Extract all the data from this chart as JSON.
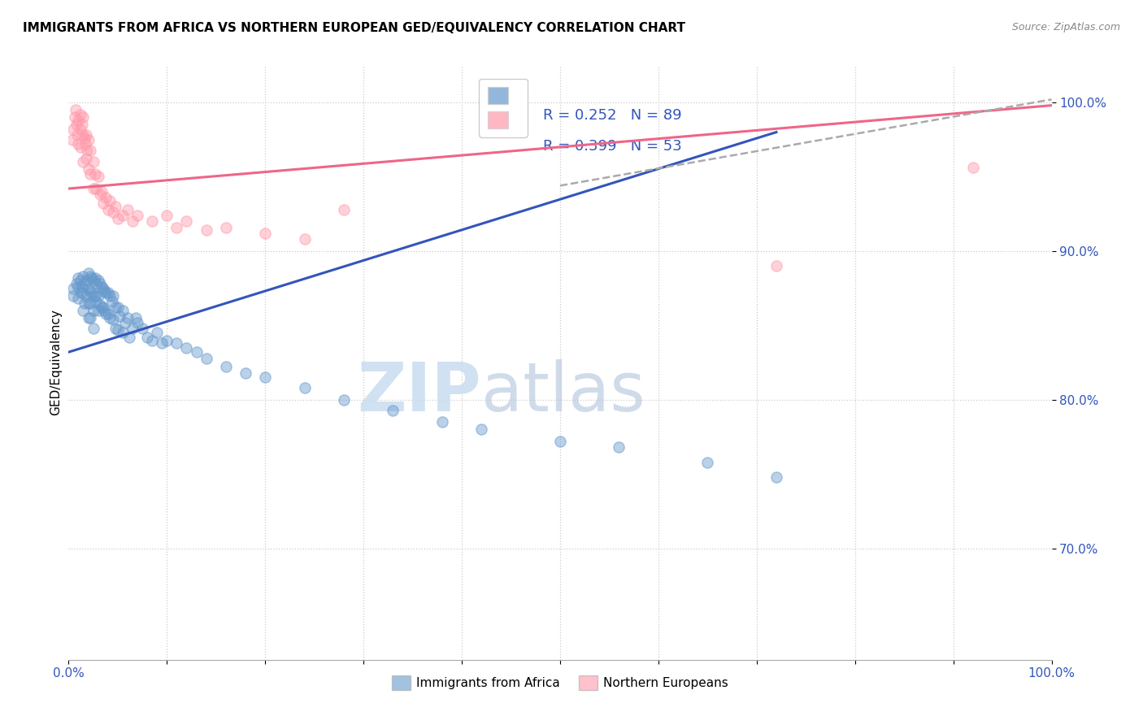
{
  "title": "IMMIGRANTS FROM AFRICA VS NORTHERN EUROPEAN GED/EQUIVALENCY CORRELATION CHART",
  "source": "Source: ZipAtlas.com",
  "ylabel": "GED/Equivalency",
  "ytick_labels": [
    "70.0%",
    "80.0%",
    "90.0%",
    "100.0%"
  ],
  "ytick_values": [
    0.7,
    0.8,
    0.9,
    1.0
  ],
  "xlim": [
    0.0,
    1.0
  ],
  "ylim": [
    0.625,
    1.025
  ],
  "blue_color": "#6699CC",
  "pink_color": "#FF99AA",
  "title_fontsize": 11,
  "watermark_zip": "ZIP",
  "watermark_atlas": "atlas",
  "blue_scatter_x": [
    0.005,
    0.005,
    0.008,
    0.01,
    0.01,
    0.01,
    0.012,
    0.012,
    0.014,
    0.015,
    0.015,
    0.015,
    0.016,
    0.016,
    0.018,
    0.018,
    0.02,
    0.02,
    0.02,
    0.02,
    0.022,
    0.022,
    0.022,
    0.022,
    0.024,
    0.024,
    0.025,
    0.025,
    0.025,
    0.025,
    0.027,
    0.027,
    0.028,
    0.028,
    0.03,
    0.03,
    0.03,
    0.032,
    0.032,
    0.034,
    0.034,
    0.035,
    0.035,
    0.036,
    0.036,
    0.038,
    0.038,
    0.04,
    0.04,
    0.042,
    0.042,
    0.044,
    0.045,
    0.045,
    0.048,
    0.048,
    0.05,
    0.05,
    0.052,
    0.055,
    0.055,
    0.058,
    0.06,
    0.062,
    0.065,
    0.068,
    0.07,
    0.075,
    0.08,
    0.085,
    0.09,
    0.095,
    0.1,
    0.11,
    0.12,
    0.13,
    0.14,
    0.16,
    0.18,
    0.2,
    0.24,
    0.28,
    0.33,
    0.38,
    0.42,
    0.5,
    0.56,
    0.65,
    0.72
  ],
  "blue_scatter_y": [
    0.875,
    0.87,
    0.878,
    0.882,
    0.876,
    0.868,
    0.88,
    0.872,
    0.876,
    0.883,
    0.872,
    0.86,
    0.878,
    0.865,
    0.88,
    0.87,
    0.885,
    0.875,
    0.865,
    0.855,
    0.883,
    0.873,
    0.865,
    0.855,
    0.882,
    0.872,
    0.88,
    0.87,
    0.86,
    0.848,
    0.882,
    0.87,
    0.878,
    0.866,
    0.88,
    0.87,
    0.86,
    0.878,
    0.864,
    0.876,
    0.862,
    0.875,
    0.862,
    0.873,
    0.86,
    0.872,
    0.858,
    0.872,
    0.858,
    0.87,
    0.855,
    0.866,
    0.87,
    0.854,
    0.862,
    0.848,
    0.862,
    0.847,
    0.856,
    0.86,
    0.845,
    0.852,
    0.855,
    0.842,
    0.848,
    0.855,
    0.852,
    0.848,
    0.842,
    0.84,
    0.845,
    0.838,
    0.84,
    0.838,
    0.835,
    0.832,
    0.828,
    0.822,
    0.818,
    0.815,
    0.808,
    0.8,
    0.793,
    0.785,
    0.78,
    0.772,
    0.768,
    0.758,
    0.748
  ],
  "pink_scatter_x": [
    0.004,
    0.005,
    0.006,
    0.007,
    0.008,
    0.009,
    0.01,
    0.01,
    0.012,
    0.012,
    0.012,
    0.014,
    0.015,
    0.015,
    0.015,
    0.016,
    0.017,
    0.018,
    0.018,
    0.019,
    0.02,
    0.02,
    0.022,
    0.022,
    0.025,
    0.025,
    0.027,
    0.028,
    0.03,
    0.032,
    0.034,
    0.035,
    0.038,
    0.04,
    0.042,
    0.045,
    0.048,
    0.05,
    0.055,
    0.06,
    0.065,
    0.07,
    0.085,
    0.1,
    0.11,
    0.12,
    0.14,
    0.16,
    0.2,
    0.24,
    0.28,
    0.72,
    0.92
  ],
  "pink_scatter_y": [
    0.975,
    0.982,
    0.99,
    0.995,
    0.985,
    0.978,
    0.988,
    0.972,
    0.992,
    0.982,
    0.97,
    0.985,
    0.99,
    0.978,
    0.96,
    0.976,
    0.972,
    0.978,
    0.962,
    0.968,
    0.975,
    0.955,
    0.968,
    0.952,
    0.96,
    0.942,
    0.952,
    0.942,
    0.95,
    0.938,
    0.94,
    0.932,
    0.936,
    0.928,
    0.934,
    0.926,
    0.93,
    0.922,
    0.924,
    0.928,
    0.92,
    0.924,
    0.92,
    0.924,
    0.916,
    0.92,
    0.914,
    0.916,
    0.912,
    0.908,
    0.928,
    0.89,
    0.956
  ],
  "blue_line_x0": 0.0,
  "blue_line_y0": 0.832,
  "blue_line_x1": 0.72,
  "blue_line_y1": 0.98,
  "pink_line_x0": 0.0,
  "pink_line_y0": 0.942,
  "pink_line_x1": 1.0,
  "pink_line_y1": 0.998,
  "dashed_line_x0": 0.5,
  "dashed_line_y0": 0.944,
  "dashed_line_x1": 1.0,
  "dashed_line_y1": 1.002,
  "blue_color_line": "#3355BB",
  "pink_color_line": "#EE6688"
}
